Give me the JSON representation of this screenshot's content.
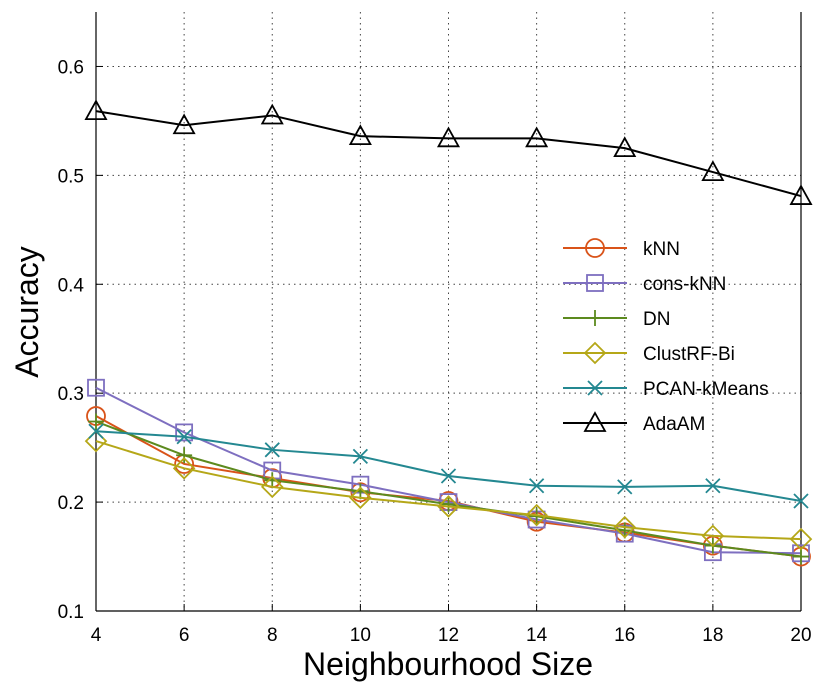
{
  "chart_data": {
    "type": "line",
    "title": "",
    "xlabel": "Neighbourhood Size",
    "ylabel": "Accuracy",
    "x": [
      4,
      6,
      8,
      10,
      12,
      14,
      16,
      18,
      20
    ],
    "xlim": [
      4,
      20
    ],
    "ylim": [
      0.1,
      0.65
    ],
    "xticks": [
      4,
      6,
      8,
      10,
      12,
      14,
      16,
      18,
      20
    ],
    "yticks": [
      0.1,
      0.2,
      0.3,
      0.4,
      0.5,
      0.6
    ],
    "xtick_labels": [
      "4",
      "6",
      "8",
      "10",
      "12",
      "14",
      "16",
      "18",
      "20"
    ],
    "ytick_labels": [
      "0.1",
      "0.2",
      "0.3",
      "0.4",
      "0.5",
      "0.6"
    ],
    "grid": true,
    "legend_position": "right",
    "series": [
      {
        "name": "kNN",
        "marker": "circle",
        "color": "#d95319",
        "values": [
          0.279,
          0.235,
          0.222,
          0.209,
          0.201,
          0.182,
          0.172,
          0.16,
          0.15
        ]
      },
      {
        "name": "cons-kNN",
        "marker": "square",
        "color": "#7e6fc0",
        "values": [
          0.305,
          0.264,
          0.229,
          0.216,
          0.2,
          0.184,
          0.171,
          0.154,
          0.153
        ]
      },
      {
        "name": "DN",
        "marker": "plus",
        "color": "#5c8a1e",
        "values": [
          0.274,
          0.243,
          0.22,
          0.21,
          0.198,
          0.187,
          0.174,
          0.16,
          0.15
        ]
      },
      {
        "name": "ClustRF-Bi",
        "marker": "diamond",
        "color": "#b5a718",
        "values": [
          0.256,
          0.231,
          0.214,
          0.204,
          0.196,
          0.188,
          0.177,
          0.169,
          0.166
        ]
      },
      {
        "name": "PCAN-kMeans",
        "marker": "x",
        "color": "#248891",
        "values": [
          0.265,
          0.26,
          0.248,
          0.242,
          0.224,
          0.215,
          0.214,
          0.215,
          0.201
        ]
      },
      {
        "name": "AdaAM",
        "marker": "triangle",
        "color": "#000000",
        "values": [
          0.559,
          0.546,
          0.555,
          0.536,
          0.534,
          0.534,
          0.525,
          0.503,
          0.481
        ]
      }
    ]
  }
}
